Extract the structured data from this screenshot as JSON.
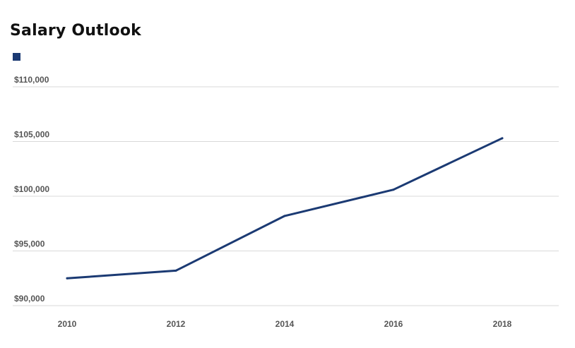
{
  "chart_data": {
    "type": "line",
    "title": "Salary Outlook",
    "xlabel": "",
    "ylabel": "",
    "x": [
      2010,
      2012,
      2014,
      2016,
      2018
    ],
    "x_tick_labels": [
      "2010",
      "2012",
      "2014",
      "2016",
      "2018"
    ],
    "xlim": [
      2010,
      2020
    ],
    "ylim": [
      90000,
      110000
    ],
    "y_ticks": [
      90000,
      95000,
      100000,
      105000,
      110000
    ],
    "y_tick_labels": [
      "$90,000",
      "$95,000",
      "$100,000",
      "$105,000",
      "$110,000"
    ],
    "grid": true,
    "legend_position": "top-left",
    "series": [
      {
        "name": "",
        "values": [
          92500,
          93200,
          98200,
          100600,
          105300
        ],
        "color": "#1b3a73"
      }
    ]
  },
  "colors": {
    "series": "#1b3a73",
    "grid": "#d9d9d9",
    "tick_text": "#555555"
  }
}
